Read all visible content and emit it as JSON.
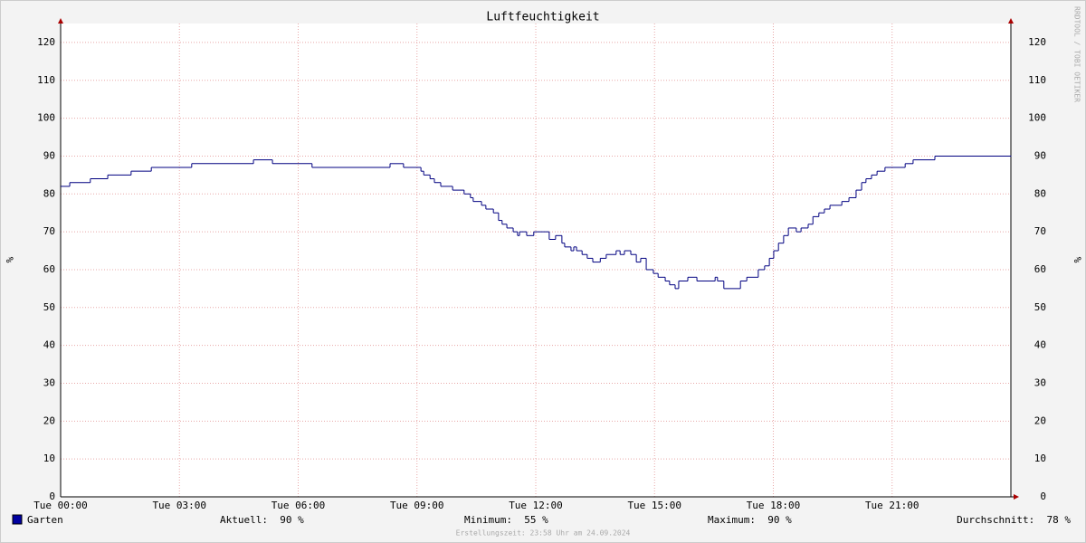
{
  "chart_data": {
    "type": "line",
    "title": "Luftfeuchtigkeit",
    "y_label": "%",
    "watermark": "RRDTOOL / TOBI OETIKER",
    "x": [
      0,
      0.23,
      0.75,
      1.19,
      1.78,
      2.29,
      3.31,
      4.87,
      5.35,
      6.35,
      8.32,
      8.66,
      9.1,
      9.17,
      9.33,
      9.44,
      9.6,
      9.9,
      10.19,
      10.35,
      10.42,
      10.63,
      10.74,
      10.93,
      11.06,
      11.15,
      11.27,
      11.43,
      11.54,
      11.59,
      11.77,
      11.95,
      12.34,
      12.5,
      12.66,
      12.73,
      12.89,
      12.96,
      13.03,
      13.17,
      13.3,
      13.44,
      13.63,
      13.78,
      14.03,
      14.13,
      14.24,
      14.4,
      14.54,
      14.65,
      14.79,
      14.97,
      15.09,
      15.27,
      15.38,
      15.52,
      15.61,
      15.84,
      16.07,
      16.53,
      16.59,
      16.75,
      17.17,
      17.33,
      17.62,
      17.78,
      17.9,
      18.01,
      18.13,
      18.26,
      18.38,
      18.58,
      18.7,
      18.88,
      19.0,
      19.15,
      19.29,
      19.43,
      19.73,
      19.91,
      20.09,
      20.23,
      20.34,
      20.48,
      20.62,
      20.82,
      21.33,
      21.53,
      22.08,
      24
    ],
    "series": [
      {
        "name": "Garten",
        "color": "#000080",
        "values": [
          82,
          83,
          84,
          85,
          86,
          87,
          88,
          89,
          88,
          87,
          88,
          87,
          86,
          85,
          84,
          83,
          82,
          81,
          80,
          79,
          78,
          77,
          76,
          75,
          73,
          72,
          71,
          70,
          69,
          70,
          69,
          70,
          68,
          69,
          67,
          66,
          65,
          66,
          65,
          64,
          63,
          62,
          63,
          64,
          65,
          64,
          65,
          64,
          62,
          63,
          60,
          59,
          58,
          57,
          56,
          55,
          57,
          58,
          57,
          58,
          57,
          55,
          57,
          58,
          60,
          61,
          63,
          65,
          67,
          69,
          71,
          70,
          71,
          72,
          74,
          75,
          76,
          77,
          78,
          79,
          81,
          83,
          84,
          85,
          86,
          87,
          88,
          89,
          90,
          90
        ]
      }
    ],
    "xlim": [
      0,
      24
    ],
    "xticks": [
      {
        "value": 0,
        "label": "Tue 00:00"
      },
      {
        "value": 3,
        "label": "Tue 03:00"
      },
      {
        "value": 6,
        "label": "Tue 06:00"
      },
      {
        "value": 9,
        "label": "Tue 09:00"
      },
      {
        "value": 12,
        "label": "Tue 12:00"
      },
      {
        "value": 15,
        "label": "Tue 15:00"
      },
      {
        "value": 18,
        "label": "Tue 18:00"
      },
      {
        "value": 21,
        "label": "Tue 21:00"
      }
    ],
    "ylim": [
      0,
      125
    ],
    "yticks": [
      0,
      10,
      20,
      30,
      40,
      50,
      60,
      70,
      80,
      90,
      100,
      110,
      120
    ],
    "grid": true,
    "stats": [
      "Aktuell:  90 %",
      "Minimum:  55 %",
      "Maximum:  90 %",
      "Durchschnitt:  78 %"
    ],
    "footer": "Erstellungszeit: 23:58 Uhr am 24.09.2024"
  }
}
